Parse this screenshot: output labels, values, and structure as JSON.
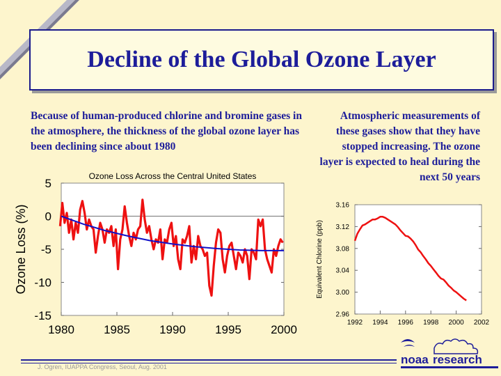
{
  "title": "Decline of the Global Ozone Layer",
  "left_text": "Because of human-produced chlorine and bromine gases in the atmosphere, the thickness of the global ozone layer has been declining since about 1980",
  "right_text": "Atmospheric measurements of these gases show that they have stopped increasing. The ozone layer is expected to heal during the next 50 years",
  "footer": {
    "credit": "J. Ogren, IUAPPA Congress, Seoul, Aug. 2001"
  },
  "logo": {
    "noaa": "noaa",
    "research": "research"
  },
  "colors": {
    "navy": "#1d1d9a",
    "red": "#ee1111",
    "blue_trend": "#1010c8",
    "plot_bg": "#ffffff"
  },
  "chart_data": [
    {
      "type": "line",
      "title": "Ozone Loss Across the Central United States",
      "xlabel": "",
      "ylabel": "Ozone Loss (%)",
      "xlim": [
        1980,
        2000
      ],
      "ylim": [
        -15,
        5
      ],
      "x_ticks": [
        1980,
        1985,
        1990,
        1995,
        2000
      ],
      "y_ticks": [
        5,
        0,
        -5,
        -10,
        -15
      ],
      "grid": false,
      "series": [
        {
          "color": "#ee1111",
          "x": [
            1979.9,
            1980.1,
            1980.3,
            1980.5,
            1980.7,
            1980.9,
            1981.1,
            1981.3,
            1981.5,
            1981.7,
            1981.9,
            1982.1,
            1982.3,
            1982.5,
            1982.7,
            1982.9,
            1983.1,
            1983.3,
            1983.5,
            1983.7,
            1983.9,
            1984.1,
            1984.3,
            1984.5,
            1984.7,
            1984.9,
            1985.1,
            1985.3,
            1985.5,
            1985.7,
            1985.9,
            1986.1,
            1986.3,
            1986.5,
            1986.7,
            1986.9,
            1987.1,
            1987.3,
            1987.5,
            1987.7,
            1987.9,
            1988.1,
            1988.3,
            1988.5,
            1988.7,
            1988.9,
            1989.1,
            1989.3,
            1989.5,
            1989.7,
            1989.9,
            1990.1,
            1990.3,
            1990.5,
            1990.7,
            1990.9,
            1991.1,
            1991.3,
            1991.5,
            1991.7,
            1991.9,
            1992.1,
            1992.3,
            1992.5,
            1992.7,
            1992.9,
            1993.1,
            1993.3,
            1993.5,
            1993.7,
            1993.9,
            1994.1,
            1994.3,
            1994.5,
            1994.7,
            1994.9,
            1995.1,
            1995.3,
            1995.5,
            1995.7,
            1995.9,
            1996.1,
            1996.3,
            1996.5,
            1996.7,
            1996.9,
            1997.1,
            1997.3,
            1997.5,
            1997.7,
            1997.9,
            1998.1,
            1998.3,
            1998.5,
            1998.7,
            1998.9,
            1999.1,
            1999.3,
            1999.5,
            1999.7,
            1999.9
          ],
          "y": [
            -1.5,
            2.0,
            -1.0,
            0.5,
            -2.5,
            -0.5,
            -3.5,
            -1.0,
            -2.5,
            1.0,
            2.3,
            0.5,
            -2.0,
            -0.5,
            -1.5,
            -2.0,
            -5.5,
            -3.0,
            -1.0,
            -2.0,
            -4.0,
            -2.0,
            -2.5,
            -1.5,
            -4.5,
            -2.0,
            -8.0,
            -3.5,
            -2.0,
            1.5,
            -1.0,
            -3.0,
            -4.5,
            -2.5,
            -3.5,
            -2.0,
            -1.5,
            2.5,
            -0.5,
            -2.5,
            -1.5,
            -3.5,
            -5.0,
            -3.5,
            -4.0,
            -2.0,
            -6.5,
            -3.5,
            -4.0,
            -2.0,
            -1.0,
            -4.5,
            -3.0,
            -6.5,
            -8.0,
            -3.5,
            -4.0,
            -3.0,
            -1.5,
            -7.0,
            -4.5,
            -6.5,
            -3.0,
            -4.5,
            -5.0,
            -6.0,
            -5.5,
            -10.5,
            -12.0,
            -7.5,
            -4.0,
            -2.0,
            -2.5,
            -6.5,
            -8.5,
            -6.0,
            -4.5,
            -4.0,
            -6.0,
            -8.0,
            -5.5,
            -6.0,
            -7.0,
            -5.0,
            -6.0,
            -9.5,
            -5.0,
            -5.5,
            -6.5,
            -0.5,
            -1.5,
            -0.5,
            -5.0,
            -6.5,
            -7.5,
            -8.5,
            -5.0,
            -6.0,
            -4.5,
            -3.5,
            -4.0
          ]
        },
        {
          "color": "#1010c8",
          "x": [
            1980,
            1982,
            1984,
            1986,
            1988,
            1990,
            1992,
            1994,
            1996,
            1998,
            2000
          ],
          "y": [
            0.0,
            -1.2,
            -2.2,
            -3.0,
            -3.7,
            -4.2,
            -4.6,
            -4.9,
            -5.1,
            -5.2,
            -5.2
          ]
        }
      ]
    },
    {
      "type": "line",
      "title": "",
      "xlabel": "",
      "ylabel": "Equivalent Chlorine (ppb)",
      "xlim": [
        1992,
        2002
      ],
      "ylim": [
        2.96,
        3.16
      ],
      "x_ticks": [
        1992,
        1994,
        1996,
        1998,
        2000,
        2002
      ],
      "y_ticks": [
        3.16,
        3.12,
        3.08,
        3.04,
        3.0,
        2.96
      ],
      "grid": false,
      "series": [
        {
          "color": "#ee1111",
          "x": [
            1992.0,
            1992.2,
            1992.4,
            1992.6,
            1992.8,
            1993.0,
            1993.2,
            1993.4,
            1993.6,
            1993.8,
            1994.0,
            1994.2,
            1994.4,
            1994.6,
            1994.8,
            1995.0,
            1995.2,
            1995.4,
            1995.6,
            1995.8,
            1996.0,
            1996.2,
            1996.4,
            1996.6,
            1996.8,
            1997.0,
            1997.2,
            1997.4,
            1997.6,
            1997.8,
            1998.0,
            1998.2,
            1998.4,
            1998.6,
            1998.8,
            1999.0,
            1999.2,
            1999.4,
            1999.6,
            1999.8,
            2000.0,
            2000.2,
            2000.4,
            2000.6,
            2000.8
          ],
          "y": [
            3.094,
            3.107,
            3.115,
            3.122,
            3.124,
            3.127,
            3.13,
            3.133,
            3.133,
            3.135,
            3.138,
            3.138,
            3.136,
            3.133,
            3.13,
            3.127,
            3.124,
            3.119,
            3.113,
            3.108,
            3.103,
            3.102,
            3.098,
            3.093,
            3.086,
            3.078,
            3.073,
            3.066,
            3.06,
            3.053,
            3.048,
            3.042,
            3.036,
            3.03,
            3.025,
            3.023,
            3.018,
            3.012,
            3.008,
            3.003,
            3.0,
            2.996,
            2.992,
            2.988,
            2.985
          ]
        }
      ]
    }
  ]
}
